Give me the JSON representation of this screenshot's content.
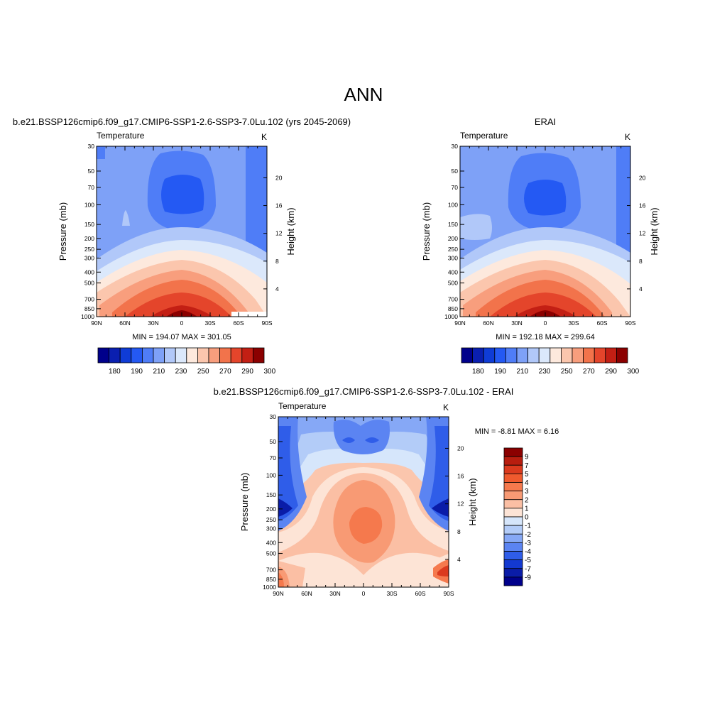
{
  "page": {
    "title": "ANN"
  },
  "chart_data": [
    {
      "type": "contour",
      "title": "b.e21.BSSP126cmip6.f09_g17.CMIP6-SSP1-2.6-SSP3-7.0Lu.102 (yrs 2045-2069)",
      "left_string": "Temperature",
      "right_string": "K",
      "ylabel": "Pressure (mb)",
      "y2label": "Height (km)",
      "x_ticks": [
        "90N",
        "60N",
        "30N",
        "0",
        "30S",
        "60S",
        "90S"
      ],
      "y_ticks": [
        30,
        50,
        70,
        100,
        150,
        200,
        250,
        300,
        400,
        500,
        700,
        850,
        1000
      ],
      "y2_ticks": [
        4,
        8,
        12,
        16,
        20
      ],
      "y_scale": "log",
      "ylim": [
        1000,
        30
      ],
      "min_label": "MIN = 194.07  MAX = 301.05",
      "min": 194.07,
      "max": 301.05,
      "colorbar": {
        "orientation": "horizontal",
        "labels": [
          "180",
          "190",
          "210",
          "230",
          "250",
          "270",
          "290",
          "300"
        ],
        "colors": [
          "#00008b",
          "#0a1fb0",
          "#0f3cd6",
          "#2459f3",
          "#4f7df7",
          "#7ea1f7",
          "#b1c8f9",
          "#dbe8fb",
          "#fde9dd",
          "#fbc6ad",
          "#f89e7d",
          "#f2734b",
          "#e4452b",
          "#c31f14",
          "#8b0000"
        ]
      }
    },
    {
      "type": "contour",
      "title": "ERAI",
      "left_string": "Temperature",
      "right_string": "K",
      "ylabel": "Pressure (mb)",
      "y2label": "Height (km)",
      "x_ticks": [
        "90N",
        "60N",
        "30N",
        "0",
        "30S",
        "60S",
        "90S"
      ],
      "y_ticks": [
        30,
        50,
        70,
        100,
        150,
        200,
        250,
        300,
        400,
        500,
        700,
        850,
        1000
      ],
      "y2_ticks": [
        4,
        8,
        12,
        16,
        20
      ],
      "y_scale": "log",
      "ylim": [
        1000,
        30
      ],
      "min_label": "MIN = 192.18  MAX = 299.64",
      "min": 192.18,
      "max": 299.64,
      "colorbar": {
        "orientation": "horizontal",
        "labels": [
          "180",
          "190",
          "210",
          "230",
          "250",
          "270",
          "290",
          "300"
        ],
        "colors": [
          "#00008b",
          "#0a1fb0",
          "#0f3cd6",
          "#2459f3",
          "#4f7df7",
          "#7ea1f7",
          "#b1c8f9",
          "#dbe8fb",
          "#fde9dd",
          "#fbc6ad",
          "#f89e7d",
          "#f2734b",
          "#e4452b",
          "#c31f14",
          "#8b0000"
        ]
      }
    },
    {
      "type": "contour",
      "title": "b.e21.BSSP126cmip6.f09_g17.CMIP6-SSP1-2.6-SSP3-7.0Lu.102 - ERAI",
      "left_string": "Temperature",
      "right_string": "K",
      "ylabel": "Pressure (mb)",
      "y2label": "Height (km)",
      "x_ticks": [
        "90N",
        "60N",
        "30N",
        "0",
        "30S",
        "60S",
        "90S"
      ],
      "y_ticks": [
        30,
        50,
        70,
        100,
        150,
        200,
        250,
        300,
        400,
        500,
        700,
        850,
        1000
      ],
      "y2_ticks": [
        4,
        8,
        12,
        16,
        20
      ],
      "y_scale": "log",
      "ylim": [
        1000,
        30
      ],
      "min_label": "MIN =  -8.81  MAX =   6.16",
      "min": -8.81,
      "max": 6.16,
      "colorbar": {
        "orientation": "vertical",
        "labels": [
          "9",
          "7",
          "5",
          "4",
          "3",
          "2",
          "1",
          "0",
          "-1",
          "-2",
          "-3",
          "-4",
          "-5",
          "-7",
          "-9"
        ],
        "colors": [
          "#8b0000",
          "#b81d0f",
          "#db3a1e",
          "#ef5a2e",
          "#f5794d",
          "#f89a74",
          "#fbbfa4",
          "#fde4d6",
          "#d6e6fb",
          "#b3ccf8",
          "#86a8f6",
          "#5b84f2",
          "#2f5de9",
          "#1339d1",
          "#0a1ca8",
          "#00008b"
        ]
      }
    }
  ]
}
